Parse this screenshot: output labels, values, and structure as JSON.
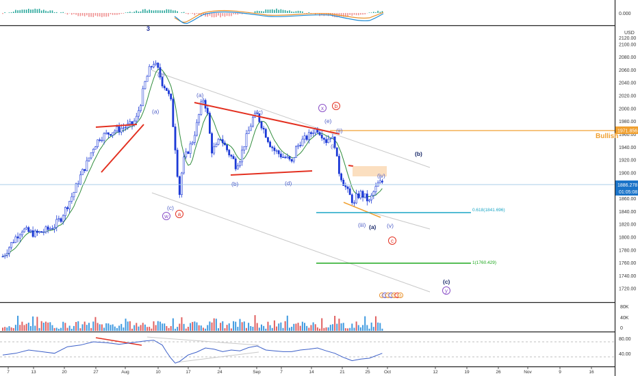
{
  "chart_data": {
    "type": "candlestick",
    "price_axis": {
      "currency": "USD",
      "ylim": [
        1700,
        2120
      ],
      "ticks": [
        1720,
        1740,
        1760,
        1780,
        1800,
        1820,
        1840,
        1860,
        1880,
        1900,
        1920,
        1940,
        1960,
        1980,
        2000,
        2020,
        2040,
        2060,
        2080,
        2100
      ],
      "labels": [
        "1720.00",
        "1740.00",
        "1760.00",
        "1780.00",
        "1800.00",
        "1820.00",
        "1840.00",
        "1860.00",
        "1880.00",
        "1900.00",
        "1920.00",
        "1940.00",
        "1960.00",
        "1980.00",
        "2000.00",
        "2020.00",
        "2040.00",
        "2060.00",
        "2080.00",
        "2100.00"
      ],
      "top_label": "2120.00",
      "current_price": "1886.278",
      "countdown": "01:05:08",
      "bullish_price": "1971.856"
    },
    "time_axis": {
      "labels": [
        "7",
        "13",
        "20",
        "27",
        "Aug",
        "10",
        "17",
        "24",
        "Sep",
        "7",
        "14",
        "21",
        "25",
        "Oct",
        "12",
        "19",
        "26",
        "Nov",
        "9",
        "16"
      ]
    },
    "price_path": [
      [
        0,
        1770
      ],
      [
        3,
        1785
      ],
      [
        6,
        1800
      ],
      [
        9,
        1812
      ],
      [
        12,
        1808
      ],
      [
        15,
        1805
      ],
      [
        18,
        1808
      ],
      [
        21,
        1812
      ],
      [
        24,
        1818
      ],
      [
        27,
        1830
      ],
      [
        30,
        1850
      ],
      [
        33,
        1870
      ],
      [
        36,
        1895
      ],
      [
        39,
        1915
      ],
      [
        42,
        1940
      ],
      [
        45,
        1955
      ],
      [
        48,
        1960
      ],
      [
        51,
        1965
      ],
      [
        54,
        1968
      ],
      [
        57,
        1972
      ],
      [
        60,
        1975
      ],
      [
        62,
        1985
      ],
      [
        64,
        2010
      ],
      [
        66,
        2040
      ],
      [
        68,
        2060
      ],
      [
        70,
        2072
      ],
      [
        72,
        2060
      ],
      [
        74,
        2040
      ],
      [
        76,
        2030
      ],
      [
        78,
        2010
      ],
      [
        80,
        1940
      ],
      [
        81,
        1900
      ],
      [
        82,
        1868
      ],
      [
        83,
        1900
      ],
      [
        84,
        1920
      ],
      [
        86,
        1935
      ],
      [
        88,
        1950
      ],
      [
        90,
        1975
      ],
      [
        92,
        2005
      ],
      [
        93,
        2015
      ],
      [
        94,
        2005
      ],
      [
        95,
        1990
      ],
      [
        96,
        1960
      ],
      [
        97,
        1935
      ],
      [
        99,
        1940
      ],
      [
        101,
        1955
      ],
      [
        103,
        1942
      ],
      [
        105,
        1930
      ],
      [
        107,
        1920
      ],
      [
        108,
        1912
      ],
      [
        110,
        1922
      ],
      [
        112,
        1945
      ],
      [
        114,
        1965
      ],
      [
        116,
        1985
      ],
      [
        118,
        1990
      ],
      [
        120,
        1975
      ],
      [
        122,
        1960
      ],
      [
        124,
        1945
      ],
      [
        126,
        1935
      ],
      [
        128,
        1930
      ],
      [
        130,
        1925
      ],
      [
        132,
        1922
      ],
      [
        134,
        1915
      ],
      [
        136,
        1938
      ],
      [
        138,
        1948
      ],
      [
        140,
        1952
      ],
      [
        142,
        1958
      ],
      [
        144,
        1966
      ],
      [
        146,
        1968
      ],
      [
        148,
        1960
      ],
      [
        150,
        1950
      ],
      [
        152,
        1958
      ],
      [
        154,
        1945
      ],
      [
        155,
        1920
      ],
      [
        156,
        1902
      ],
      [
        158,
        1885
      ],
      [
        160,
        1870
      ],
      [
        162,
        1858
      ],
      [
        163,
        1850
      ],
      [
        164,
        1862
      ],
      [
        166,
        1868
      ],
      [
        168,
        1862
      ],
      [
        170,
        1855
      ],
      [
        172,
        1870
      ],
      [
        174,
        1882
      ],
      [
        176,
        1886
      ]
    ],
    "volume": {
      "ticks": [
        "80K",
        "40K",
        "0"
      ]
    },
    "rsi": {
      "ticks": [
        "80.00",
        "40.00"
      ],
      "path": [
        [
          0,
          48
        ],
        [
          6,
          52
        ],
        [
          12,
          60
        ],
        [
          18,
          56
        ],
        [
          24,
          52
        ],
        [
          30,
          68
        ],
        [
          36,
          72
        ],
        [
          42,
          80
        ],
        [
          48,
          78
        ],
        [
          54,
          74
        ],
        [
          60,
          78
        ],
        [
          66,
          82
        ],
        [
          70,
          84
        ],
        [
          74,
          72
        ],
        [
          76,
          55
        ],
        [
          78,
          40
        ],
        [
          80,
          28
        ],
        [
          82,
          32
        ],
        [
          86,
          48
        ],
        [
          90,
          55
        ],
        [
          94,
          65
        ],
        [
          98,
          62
        ],
        [
          102,
          56
        ],
        [
          106,
          60
        ],
        [
          110,
          58
        ],
        [
          114,
          66
        ],
        [
          118,
          70
        ],
        [
          122,
          60
        ],
        [
          126,
          58
        ],
        [
          130,
          56
        ],
        [
          134,
          56
        ],
        [
          138,
          60
        ],
        [
          142,
          62
        ],
        [
          146,
          65
        ],
        [
          150,
          58
        ],
        [
          154,
          52
        ],
        [
          158,
          42
        ],
        [
          162,
          34
        ],
        [
          166,
          38
        ],
        [
          170,
          40
        ],
        [
          174,
          48
        ],
        [
          176,
          52
        ]
      ]
    },
    "macd_axis": {
      "tick": "0.000"
    },
    "annotations": {
      "wave_labels": [
        "3",
        "(b)",
        "(a)",
        "(a)",
        "(c)",
        "(c)",
        "(b)",
        "(d)",
        "(e)",
        "(ii)",
        "(i)",
        "(iv)",
        "(b)",
        "(iii)",
        "(a)",
        "(v)",
        "(c)"
      ],
      "circled_labels": [
        "w",
        "a",
        "x",
        "b",
        "c",
        "y"
      ],
      "fib_618": "0.618(1841.696)",
      "fib_1": "1(1760.429)",
      "bullish_text": "Bullish",
      "event_badges": [
        "4",
        "1",
        "3",
        "2",
        "5",
        "2",
        "6"
      ]
    },
    "colors": {
      "candle": "#1a38d6",
      "ma": "#2e8b3a",
      "red_line": "#e33020",
      "orange_line": "#f0a030",
      "teal_line": "#1aa5c5",
      "green_line": "#1ea81e",
      "label_blue": "#4f5fc7",
      "current_price_line": "#a9cde8",
      "volume": "#3f9ae0"
    }
  }
}
